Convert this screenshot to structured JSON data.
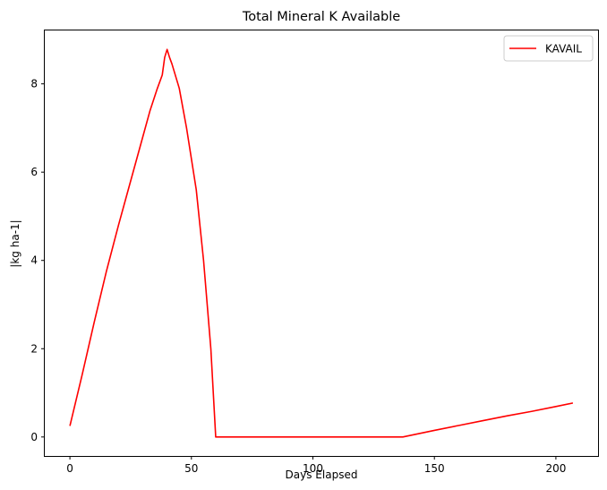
{
  "chart_data": {
    "type": "line",
    "title": "Total Mineral K Available",
    "xlabel": "Days Elapsed",
    "ylabel": "|kg ha-1|",
    "xlim": [
      -10.35,
      217.35
    ],
    "ylim": [
      -0.43,
      9.21
    ],
    "xticks": [
      0,
      50,
      100,
      150,
      200
    ],
    "yticks": [
      0,
      2,
      4,
      6,
      8
    ],
    "grid": false,
    "legend_position": "top-right",
    "series": [
      {
        "name": "KAVAIL",
        "color": "#ff0000",
        "x": [
          0,
          5,
          10,
          15,
          20,
          25,
          30,
          33,
          36,
          38,
          39,
          40,
          41,
          42,
          45,
          48,
          50,
          52,
          55,
          58,
          60,
          70,
          80,
          90,
          100,
          110,
          120,
          130,
          137,
          150,
          160,
          170,
          180,
          190,
          200,
          207
        ],
        "y": [
          0.25,
          1.4,
          2.6,
          3.75,
          4.8,
          5.8,
          6.8,
          7.4,
          7.9,
          8.2,
          8.6,
          8.78,
          8.6,
          8.45,
          7.9,
          7.0,
          6.3,
          5.6,
          4.0,
          2.0,
          0.0,
          0.0,
          0.0,
          0.0,
          0.0,
          0.0,
          0.0,
          0.0,
          0.0,
          0.15,
          0.26,
          0.37,
          0.48,
          0.58,
          0.69,
          0.77
        ]
      }
    ]
  }
}
